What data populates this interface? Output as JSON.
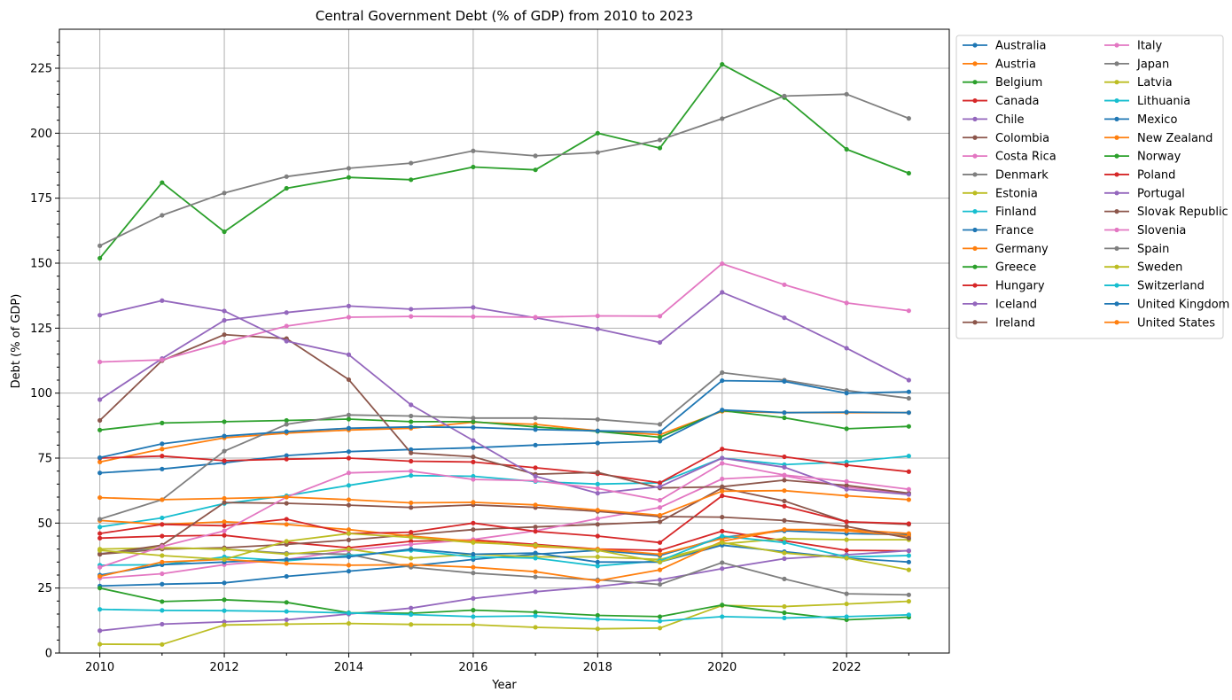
{
  "chart_data": {
    "type": "line",
    "title": "Central Government Debt (% of GDP) from 2010 to 2023",
    "xlabel": "Year",
    "ylabel": "Debt (% of GDP)",
    "xlim": [
      2009.35,
      2023.65
    ],
    "ylim": [
      0,
      240
    ],
    "xticks": [
      2010,
      2012,
      2014,
      2016,
      2018,
      2020,
      2022
    ],
    "yticks": [
      0,
      25,
      50,
      75,
      100,
      125,
      150,
      175,
      200,
      225
    ],
    "grid": true,
    "legend_position": "outside-right-top",
    "legend_columns": 2,
    "x": [
      2010,
      2011,
      2012,
      2013,
      2014,
      2015,
      2016,
      2017,
      2018,
      2019,
      2020,
      2021,
      2022,
      2023
    ],
    "series": [
      {
        "name": "Australia",
        "color": "#1f77b4",
        "values": [
          25.8,
          26.5,
          27.0,
          29.5,
          31.5,
          33.5,
          36.0,
          38.0,
          39.5,
          37.5,
          44.5,
          47.0,
          46.0,
          45.5
        ]
      },
      {
        "name": "Austria",
        "color": "#ff7f0e",
        "values": [
          73.5,
          78.5,
          82.8,
          84.6,
          85.8,
          86.5,
          88.8,
          88.0,
          85.5,
          84.0,
          93.0,
          92.5,
          92.5,
          92.5
        ]
      },
      {
        "name": "Belgium",
        "color": "#2ca02c",
        "values": [
          85.8,
          88.5,
          89.0,
          89.5,
          90.0,
          89.0,
          89.0,
          87.0,
          85.3,
          83.0,
          93.3,
          90.5,
          86.3,
          87.2
        ]
      },
      {
        "name": "Canada",
        "color": "#d62728",
        "values": [
          44.2,
          45.0,
          45.3,
          42.6,
          40.5,
          43.0,
          43.5,
          41.8,
          40.0,
          39.5,
          46.9,
          43.2,
          39.5,
          39.3
        ]
      },
      {
        "name": "Chile",
        "color": "#9467bd",
        "values": [
          8.6,
          11.1,
          12.0,
          12.8,
          15.0,
          17.3,
          21.0,
          23.6,
          25.6,
          28.2,
          32.5,
          36.3,
          37.8,
          39.4
        ]
      },
      {
        "name": "Colombia",
        "color": "#8c564b",
        "values": [
          38.0,
          40.0,
          40.5,
          41.8,
          43.5,
          45.5,
          47.5,
          48.5,
          49.5,
          50.5,
          63.5,
          58.5,
          50.5,
          49.5
        ]
      },
      {
        "name": "Costa Rica",
        "color": "#e377c2",
        "values": [
          28.8,
          30.5,
          34.0,
          36.0,
          39.5,
          41.8,
          43.7,
          47.0,
          51.7,
          56.0,
          67.0,
          68.2,
          63.8,
          61.3
        ]
      },
      {
        "name": "Denmark",
        "color": "#7f7f7f",
        "values": [
          38.2,
          40.5,
          40.0,
          38.4,
          38.0,
          33.0,
          30.8,
          29.3,
          28.2,
          26.4,
          34.8,
          28.5,
          22.8,
          22.4
        ]
      },
      {
        "name": "Estonia",
        "color": "#bcbd22",
        "values": [
          3.4,
          3.3,
          10.8,
          11.1,
          11.4,
          11.0,
          10.9,
          9.9,
          9.3,
          9.6,
          18.3,
          17.9,
          18.9,
          19.9
        ]
      },
      {
        "name": "Finland",
        "color": "#17becf",
        "values": [
          48.5,
          52.0,
          57.5,
          60.5,
          64.5,
          68.3,
          68.0,
          66.0,
          65.0,
          65.5,
          75.0,
          72.5,
          73.5,
          75.8
        ]
      },
      {
        "name": "France",
        "color": "#1f77b4",
        "values": [
          69.3,
          70.8,
          73.2,
          76.0,
          77.5,
          78.3,
          79.0,
          80.0,
          80.8,
          81.5,
          93.5,
          92.5,
          92.7,
          92.5
        ]
      },
      {
        "name": "Germany",
        "color": "#ff7f0e",
        "values": [
          51.0,
          49.5,
          50.5,
          49.5,
          47.5,
          45.0,
          43.0,
          41.0,
          40.0,
          38.0,
          44.0,
          47.5,
          47.5,
          46.0
        ]
      },
      {
        "name": "Greece",
        "color": "#2ca02c",
        "values": [
          151.9,
          181.0,
          162.1,
          178.8,
          183.0,
          182.1,
          187.0,
          185.9,
          200.0,
          194.3,
          226.5,
          213.7,
          193.8,
          184.6
        ]
      },
      {
        "name": "Hungary",
        "color": "#d62728",
        "values": [
          75.0,
          75.8,
          74.0,
          74.6,
          75.0,
          73.8,
          73.5,
          71.3,
          69.0,
          65.5,
          78.5,
          75.5,
          72.3,
          69.8
        ]
      },
      {
        "name": "Iceland",
        "color": "#9467bd",
        "values": [
          97.5,
          113.3,
          128.0,
          131.0,
          133.5,
          132.3,
          133.0,
          129.0,
          124.7,
          119.5,
          138.8,
          129.0,
          117.3,
          105.0
        ]
      },
      {
        "name": "Ireland",
        "color": "#8c564b",
        "values": [
          89.5,
          112.5,
          122.5,
          121.0,
          105.2,
          77.0,
          75.5,
          68.8,
          69.5,
          63.5,
          64.0,
          66.5,
          64.5,
          61.5
        ]
      },
      {
        "name": "Italy",
        "color": "#e377c2",
        "values": [
          112.0,
          112.8,
          119.5,
          125.8,
          129.2,
          129.5,
          129.4,
          129.2,
          129.7,
          129.6,
          149.8,
          141.7,
          134.7,
          131.7
        ]
      },
      {
        "name": "Japan",
        "color": "#7f7f7f",
        "values": [
          156.7,
          168.4,
          177.0,
          183.3,
          186.5,
          188.5,
          193.2,
          191.3,
          192.6,
          197.4,
          205.6,
          214.3,
          215.0,
          205.7
        ]
      },
      {
        "name": "Latvia",
        "color": "#bcbd22",
        "values": [
          40.0,
          40.5,
          40.0,
          38.0,
          40.0,
          36.5,
          38.0,
          37.0,
          37.0,
          36.0,
          42.0,
          44.0,
          43.6,
          43.6
        ]
      },
      {
        "name": "Lithuania",
        "color": "#17becf",
        "values": [
          33.8,
          34.0,
          37.0,
          35.5,
          37.5,
          39.5,
          37.0,
          36.5,
          33.5,
          35.5,
          45.0,
          42.5,
          37.0,
          37.5
        ]
      },
      {
        "name": "Mexico",
        "color": "#1f77b4",
        "values": [
          30.0,
          34.0,
          35.0,
          36.0,
          37.0,
          40.0,
          38.0,
          38.5,
          35.0,
          35.0,
          41.5,
          39.0,
          36.5,
          35.0
        ]
      },
      {
        "name": "New Zealand",
        "color": "#ff7f0e",
        "values": [
          29.5,
          35.0,
          36.0,
          34.5,
          33.8,
          34.0,
          33.0,
          31.3,
          27.8,
          32.0,
          43.0,
          47.5,
          47.0,
          45.0
        ]
      },
      {
        "name": "Norway",
        "color": "#2ca02c",
        "values": [
          25.0,
          19.8,
          20.5,
          19.5,
          15.5,
          15.3,
          16.5,
          15.7,
          14.5,
          14.0,
          18.5,
          15.5,
          12.8,
          13.8
        ]
      },
      {
        "name": "Poland",
        "color": "#d62728",
        "values": [
          46.0,
          49.5,
          49.0,
          51.5,
          46.0,
          46.5,
          50.0,
          46.8,
          45.0,
          42.5,
          60.5,
          56.5,
          50.5,
          49.8
        ]
      },
      {
        "name": "Portugal",
        "color": "#9467bd",
        "values": [
          130.0,
          135.6,
          131.6,
          120.0,
          114.8,
          95.5,
          81.8,
          68.0,
          61.5,
          64.0,
          75.0,
          71.5,
          63.0,
          61.0
        ]
      },
      {
        "name": "Slovak Republic",
        "color": "#8c564b",
        "values": [
          38.0,
          41.5,
          57.9,
          57.6,
          56.9,
          56.0,
          57.0,
          56.0,
          54.5,
          52.5,
          52.3,
          51.0,
          48.7,
          44.2
        ]
      },
      {
        "name": "Slovenia",
        "color": "#e377c2",
        "values": [
          33.0,
          41.0,
          47.0,
          60.0,
          69.3,
          70.0,
          66.8,
          66.3,
          63.3,
          58.8,
          73.0,
          68.5,
          66.0,
          63.0
        ]
      },
      {
        "name": "Spain",
        "color": "#7f7f7f",
        "values": [
          51.5,
          59.0,
          77.7,
          88.0,
          91.6,
          91.2,
          90.4,
          90.4,
          89.9,
          88.0,
          107.9,
          105.0,
          101.0,
          98.0
        ]
      },
      {
        "name": "Sweden",
        "color": "#bcbd22",
        "values": [
          39.5,
          37.5,
          36.0,
          43.0,
          46.0,
          44.5,
          42.5,
          41.5,
          39.5,
          35.0,
          42.5,
          38.5,
          36.5,
          32.0
        ]
      },
      {
        "name": "Switzerland",
        "color": "#17becf",
        "values": [
          16.8,
          16.4,
          16.3,
          16.0,
          15.4,
          14.8,
          14.0,
          14.3,
          13.0,
          12.3,
          14.0,
          13.5,
          14.0,
          14.7
        ]
      },
      {
        "name": "United Kingdom",
        "color": "#1f77b4",
        "values": [
          75.2,
          80.5,
          83.5,
          85.2,
          86.5,
          87.0,
          86.8,
          86.0,
          85.5,
          85.0,
          104.8,
          104.5,
          100.0,
          100.5
        ]
      },
      {
        "name": "United States",
        "color": "#ff7f0e",
        "values": [
          59.8,
          59.0,
          59.5,
          60.0,
          59.0,
          57.8,
          58.0,
          57.0,
          55.0,
          53.0,
          62.3,
          62.5,
          60.5,
          59.0
        ]
      }
    ]
  }
}
